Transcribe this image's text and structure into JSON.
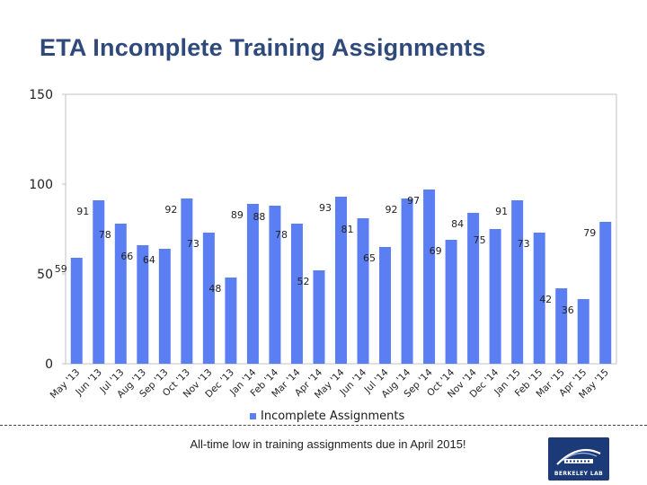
{
  "title": "ETA Incomplete Training Assignments",
  "caption": "All-time low in training assignments due in April 2015!",
  "logo_text": "BERKELEY LAB",
  "colors": {
    "bar": "#5b7ff2",
    "title": "#2f4a7a",
    "axis": "#c0c0c0"
  },
  "chart_data": {
    "type": "bar",
    "title": "ETA Incomplete Training Assignments",
    "categories": [
      "May '13",
      "Jun '13",
      "Jul '13",
      "Aug '13",
      "Sep '13",
      "Oct '13",
      "Nov '13",
      "Dec '13",
      "Jan '14",
      "Feb '14",
      "Mar '14",
      "Apr '14",
      "May '14",
      "Jun '14",
      "Jul '14",
      "Aug '14",
      "Sep '14",
      "Oct '14",
      "Nov '14",
      "Dec '14",
      "Jan '15",
      "Feb '15",
      "Mar '15",
      "Apr '15",
      "May '15"
    ],
    "series": [
      {
        "name": "Incomplete Assignments",
        "values": [
          59,
          91,
          78,
          66,
          64,
          92,
          73,
          48,
          89,
          88,
          78,
          52,
          93,
          81,
          65,
          92,
          97,
          69,
          84,
          75,
          91,
          73,
          42,
          36,
          79
        ]
      }
    ],
    "yticks": [
      "0",
      "50",
      "100",
      "150"
    ],
    "ylim": [
      0,
      150
    ],
    "legend": "bottom-center",
    "xlabel": "",
    "ylabel": ""
  }
}
